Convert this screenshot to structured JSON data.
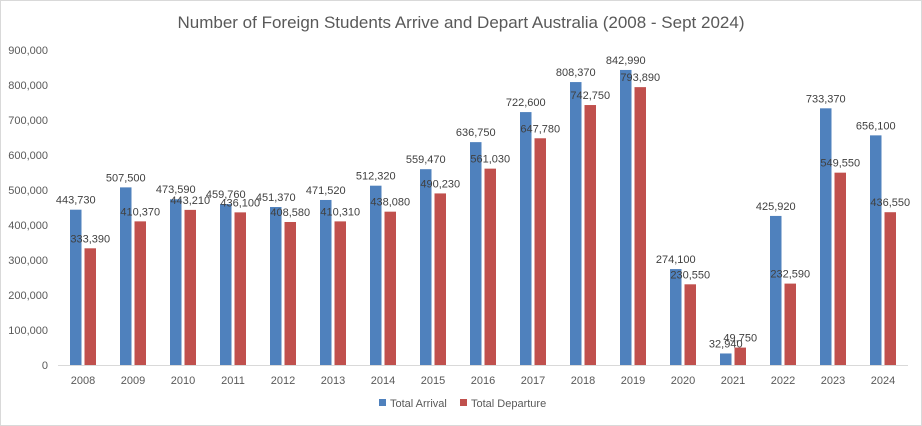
{
  "chart_data": {
    "type": "bar",
    "title": "Number of Foreign Students Arrive and Depart Australia (2008 - Sept 2024)",
    "xlabel": "",
    "ylabel": "",
    "categories": [
      "2008",
      "2009",
      "2010",
      "2011",
      "2012",
      "2013",
      "2014",
      "2015",
      "2016",
      "2017",
      "2018",
      "2019",
      "2020",
      "2021",
      "2022",
      "2023",
      "2024"
    ],
    "series": [
      {
        "name": "Total Arrival",
        "color": "#4f81bd",
        "values": [
          443730,
          507500,
          473590,
          459760,
          451370,
          471520,
          512320,
          559470,
          636750,
          722600,
          808370,
          842990,
          274100,
          32940,
          425920,
          733370,
          656100
        ],
        "labels": [
          "443,730",
          "507,500",
          "473,590",
          "459,760",
          "451,370",
          "471,520",
          "512,320",
          "559,470",
          "636,750",
          "722,600",
          "808,370",
          "842,990",
          "274,100",
          "32,940",
          "425,920",
          "733,370",
          "656,100"
        ]
      },
      {
        "name": "Total Departure",
        "color": "#c0504d",
        "values": [
          333390,
          410370,
          443210,
          436100,
          408580,
          410310,
          438080,
          490230,
          561030,
          647780,
          742750,
          793890,
          230550,
          49750,
          232590,
          549550,
          436550
        ],
        "labels": [
          "333,390",
          "410,370",
          "443,210",
          "436,100",
          "408,580",
          "410,310",
          "438,080",
          "490,230",
          "561,030",
          "647,780",
          "742,750",
          "793,890",
          "230,550",
          "49,750",
          "232,590",
          "549,550",
          "436,550"
        ]
      }
    ],
    "ylim": [
      0,
      900000
    ],
    "yticks": [
      "0",
      "100,000",
      "200,000",
      "300,000",
      "400,000",
      "500,000",
      "600,000",
      "700,000",
      "800,000",
      "900,000"
    ],
    "grid": false,
    "legend": "bottom"
  }
}
